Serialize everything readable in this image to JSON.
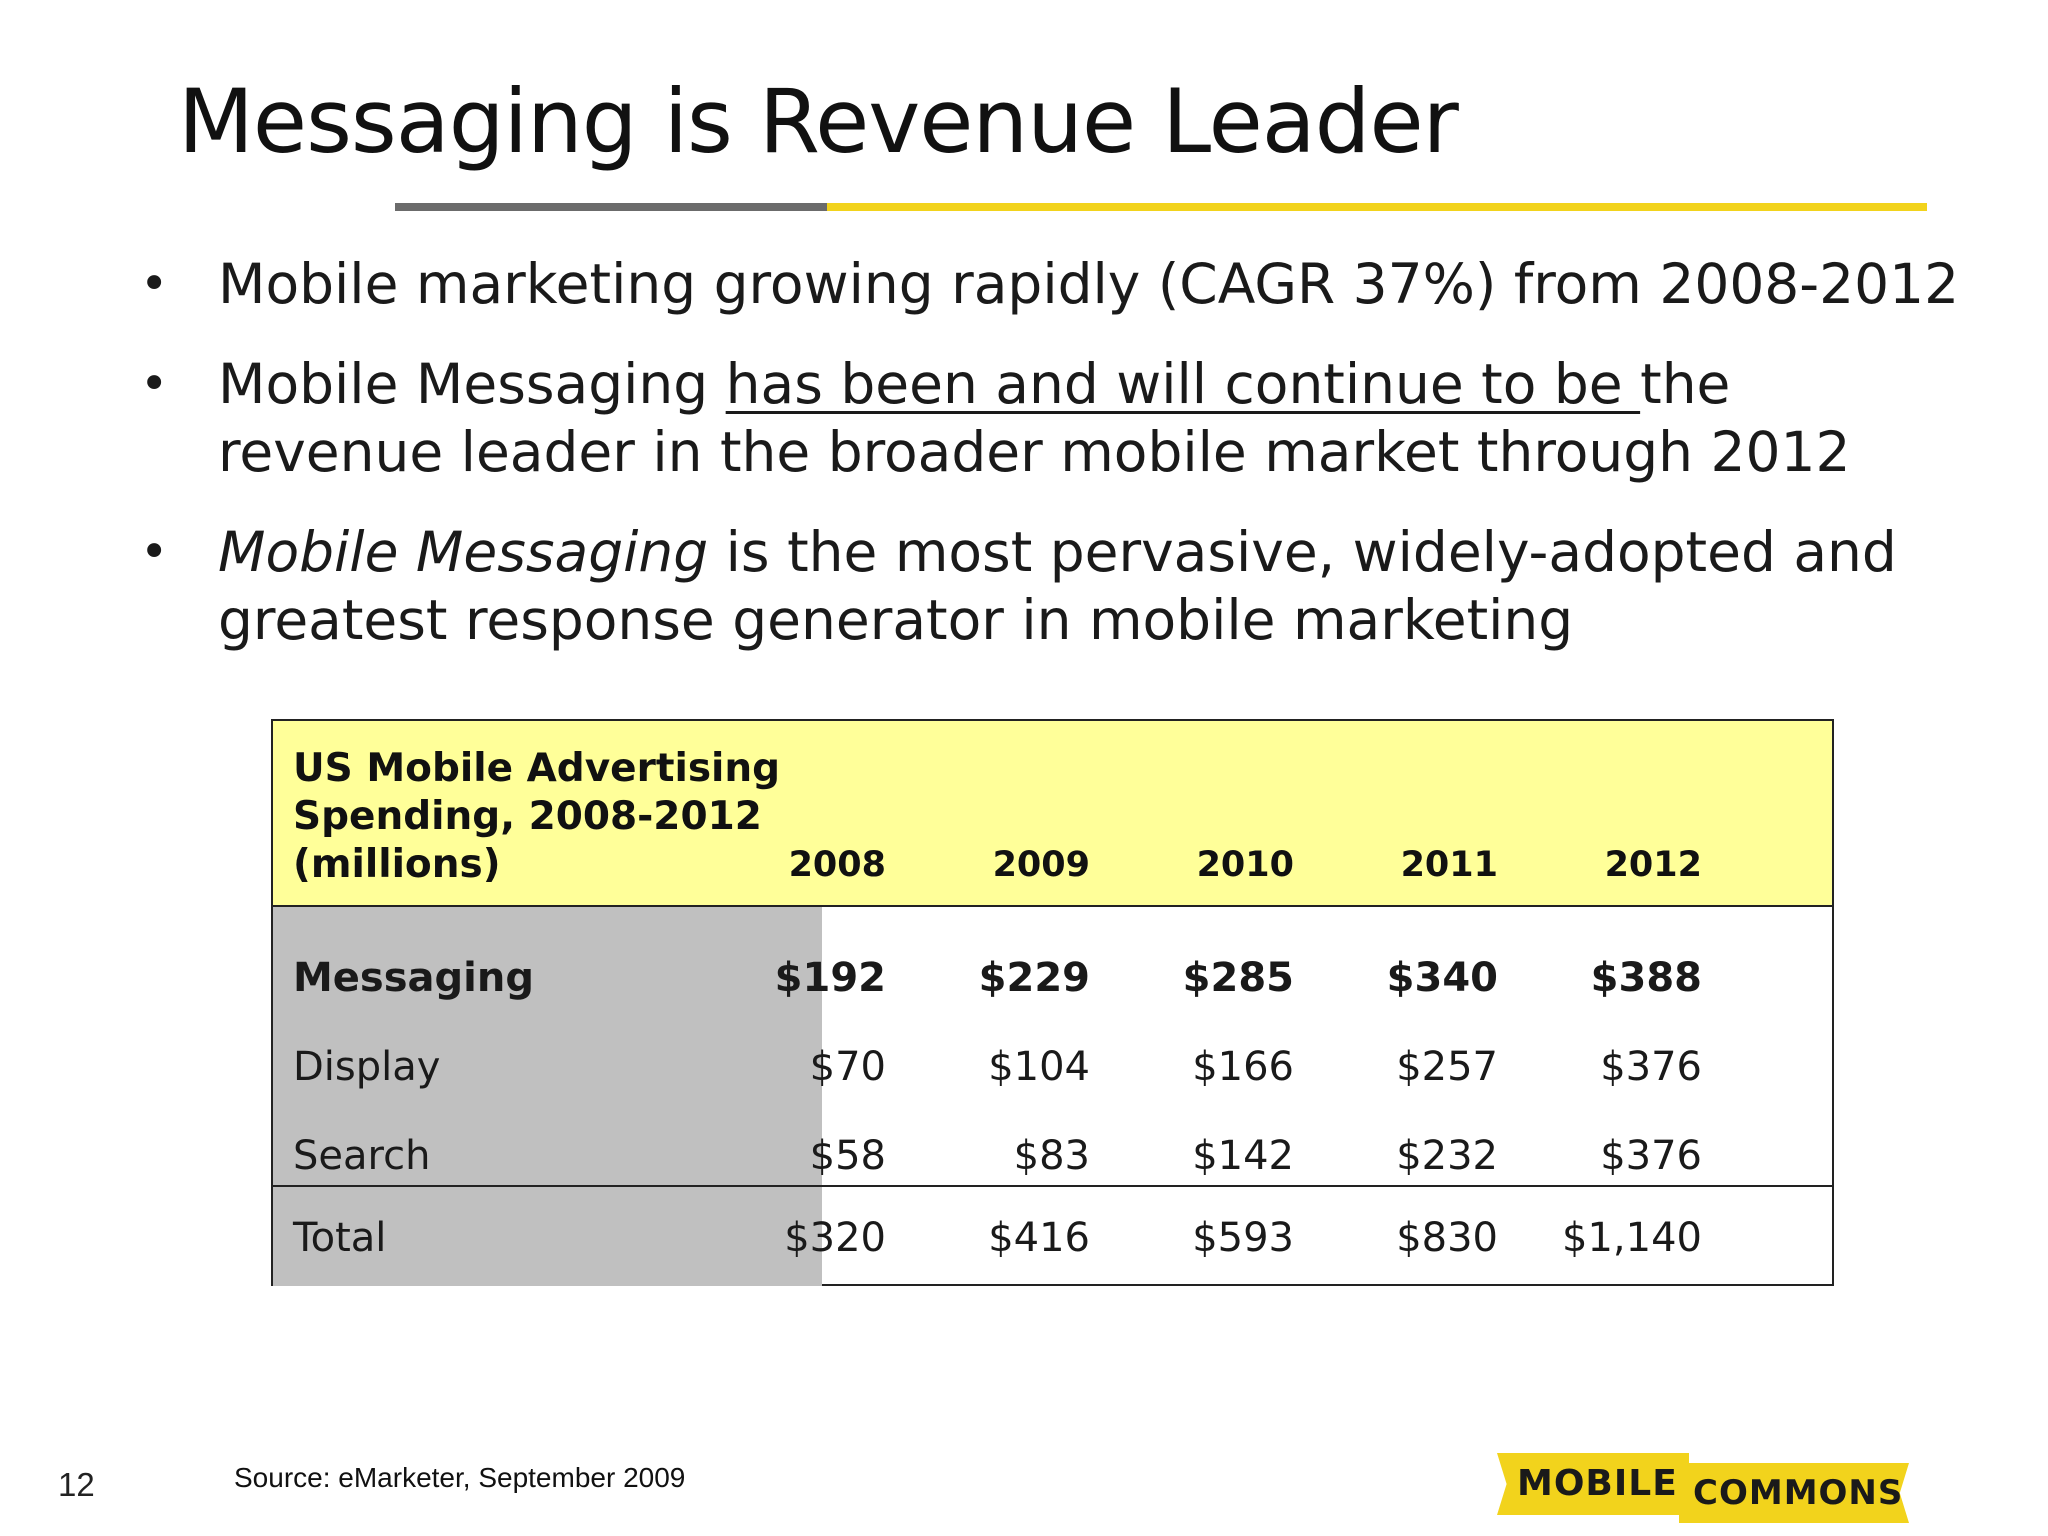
{
  "slide": {
    "title": "Messaging is Revenue Leader",
    "page_number": "12",
    "source": "Source: eMarketer, September 2009"
  },
  "bullets": [
    {
      "text": "Mobile marketing growing rapidly (CAGR 37%) from 2008-2012"
    },
    {
      "pre": "Mobile Messaging ",
      "underlined": "has been and will continue to be ",
      "post": "the revenue leader in the broader mobile market through 2012"
    },
    {
      "italic": "Mobile Messaging",
      "post": " is the most pervasive, widely-adopted and greatest response generator in mobile marketing"
    }
  ],
  "table": {
    "title_lines": [
      "US Mobile Advertising",
      "Spending, 2008-2012",
      "(millions)"
    ],
    "years": [
      "2008",
      "2009",
      "2010",
      "2011",
      "2012"
    ],
    "rows": [
      {
        "label": "Messaging",
        "values": [
          "$192",
          "$229",
          "$285",
          "$340",
          "$388"
        ]
      },
      {
        "label": "Display",
        "values": [
          "$70",
          "$104",
          "$166",
          "$257",
          "$376"
        ]
      },
      {
        "label": "Search",
        "values": [
          "$58",
          "$83",
          "$142",
          "$232",
          "$376"
        ]
      }
    ],
    "total": {
      "label": "Total",
      "values": [
        "$320",
        "$416",
        "$593",
        "$830",
        "$1,140"
      ]
    }
  },
  "logo": {
    "left": "MOBILE",
    "right": "COMMONS"
  },
  "colors": {
    "accent_yellow": "#f2d31c",
    "header_fill": "#ffff99",
    "label_fill": "#c0c0c0",
    "rule_gray": "#6b6b6b"
  }
}
